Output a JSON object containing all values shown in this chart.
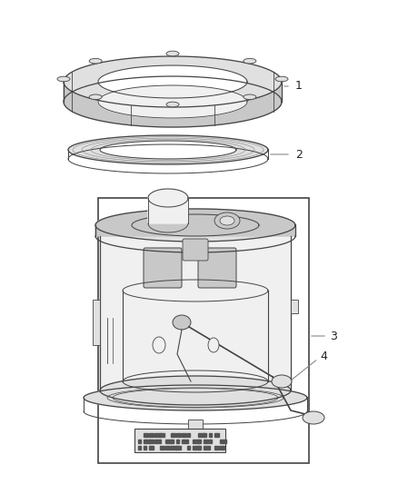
{
  "background_color": "#ffffff",
  "fig_width": 4.38,
  "fig_height": 5.33,
  "dpi": 100,
  "lc": "#444444",
  "lc_light": "#888888",
  "fill_light": "#f0f0f0",
  "fill_mid": "#e0e0e0",
  "fill_dark": "#c8c8c8"
}
